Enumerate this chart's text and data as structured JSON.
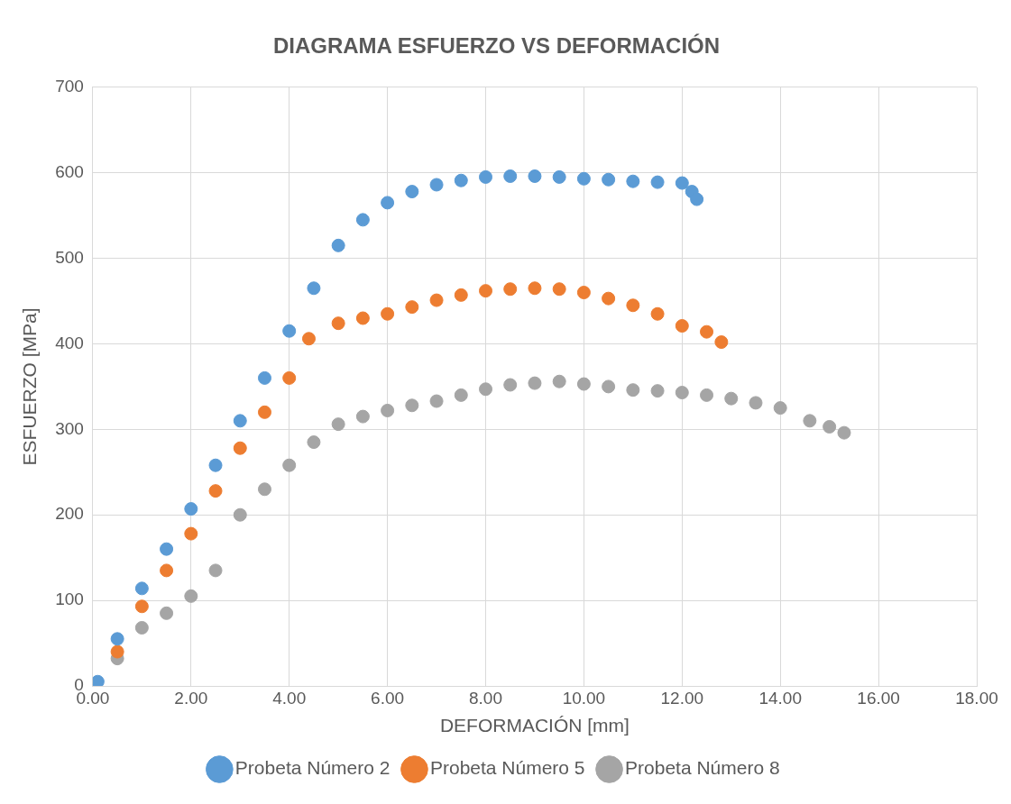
{
  "chart_data": {
    "type": "scatter",
    "title": "DIAGRAMA ESFUERZO VS DEFORMACIÓN",
    "xlabel": "DEFORMACIÓN [mm]",
    "ylabel": "ESFUERZO [MPa]",
    "xlim": [
      0,
      18
    ],
    "xticks": [
      {
        "value": 0,
        "label": "0.00"
      },
      {
        "value": 2,
        "label": "2.00"
      },
      {
        "value": 4,
        "label": "4.00"
      },
      {
        "value": 6,
        "label": "6.00"
      },
      {
        "value": 8,
        "label": "8.00"
      },
      {
        "value": 10,
        "label": "10.00"
      },
      {
        "value": 12,
        "label": "12.00"
      },
      {
        "value": 14,
        "label": "14.00"
      },
      {
        "value": 16,
        "label": "16.00"
      },
      {
        "value": 18,
        "label": "18.00"
      }
    ],
    "ylim": [
      0,
      700
    ],
    "yticks": [
      0,
      100,
      200,
      300,
      400,
      500,
      600,
      700
    ],
    "grid": true,
    "legend": "bottom",
    "marker": "circle",
    "series": [
      {
        "name": "Probeta Número 2",
        "color": "#5b9bd5",
        "x": [
          0.1,
          0.5,
          1,
          1.5,
          2,
          2.5,
          3,
          3.5,
          4,
          4.5,
          5,
          5.5,
          6,
          6.5,
          7,
          7.5,
          8,
          8.5,
          9,
          9.5,
          10,
          10.5,
          11,
          11.5,
          12,
          12.2,
          12.3
        ],
        "values": [
          5,
          55,
          114,
          160,
          207,
          258,
          310,
          360,
          415,
          465,
          515,
          545,
          565,
          578,
          586,
          591,
          595,
          596,
          596,
          595,
          593,
          592,
          590,
          589,
          588,
          578,
          569
        ]
      },
      {
        "name": "Probeta Número 5",
        "color": "#ed7d31",
        "x": [
          0.5,
          1,
          1.5,
          2,
          2.5,
          3,
          3.5,
          4,
          4.4,
          5,
          5.5,
          6,
          6.5,
          7,
          7.5,
          8,
          8.5,
          9,
          9.5,
          10,
          10.5,
          11,
          11.5,
          12,
          12.5,
          12.8
        ],
        "values": [
          40,
          93,
          135,
          178,
          228,
          278,
          320,
          360,
          406,
          424,
          430,
          435,
          443,
          451,
          457,
          462,
          464,
          465,
          464,
          460,
          453,
          445,
          435,
          421,
          414,
          402
        ]
      },
      {
        "name": "Probeta Número 8",
        "color": "#a5a5a5",
        "x": [
          0.5,
          1,
          1.5,
          2,
          2.5,
          3,
          3.5,
          4,
          4.5,
          5,
          5.5,
          6,
          6.5,
          7,
          7.5,
          8,
          8.5,
          9,
          9.5,
          10,
          10.5,
          11,
          11.5,
          12,
          12.5,
          13,
          13.5,
          14,
          14.6,
          15,
          15.3
        ],
        "values": [
          32,
          68,
          85,
          105,
          135,
          200,
          230,
          258,
          285,
          306,
          315,
          322,
          328,
          333,
          340,
          347,
          352,
          354,
          356,
          353,
          350,
          346,
          345,
          343,
          340,
          336,
          331,
          325,
          310,
          303,
          296
        ]
      }
    ]
  }
}
